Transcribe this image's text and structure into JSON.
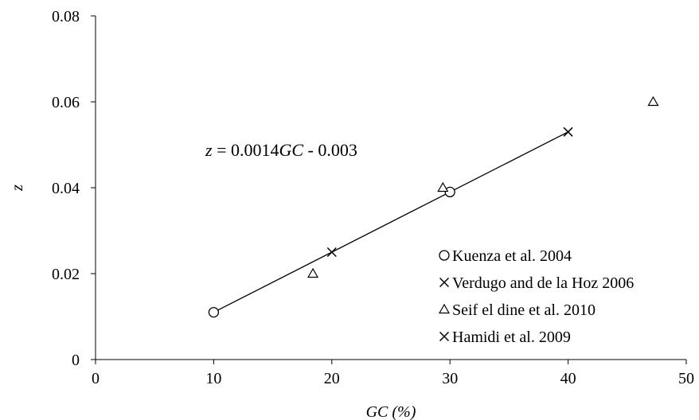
{
  "chart_data": {
    "type": "scatter",
    "xlabel": "GC (%)",
    "ylabel": "z",
    "xlim": [
      0,
      50
    ],
    "ylim": [
      0,
      0.08
    ],
    "xticks": [
      "0",
      "10",
      "20",
      "30",
      "40",
      "50"
    ],
    "yticks": [
      "0",
      "0.02",
      "0.04",
      "0.06",
      "0.08"
    ],
    "grid": false,
    "legend_position": "bottom-right",
    "series": [
      {
        "name": "Kuenza et al. 2004",
        "marker": "circle",
        "points": [
          [
            10,
            0.011
          ],
          [
            30,
            0.039
          ]
        ]
      },
      {
        "name": "Verdugo and de la Hoz 2006",
        "marker": "x",
        "points": [
          [
            20,
            0.025
          ],
          [
            40,
            0.053
          ]
        ]
      },
      {
        "name": "Seif el dine et al. 2010",
        "marker": "triangle",
        "points": [
          [
            18.4,
            0.02
          ],
          [
            29.4,
            0.04
          ],
          [
            47.2,
            0.06
          ]
        ]
      },
      {
        "name": "Hamidi et al. 2009",
        "marker": "x",
        "points": []
      }
    ],
    "trendline": {
      "x_range": [
        10,
        40
      ],
      "slope": 0.0014,
      "intercept": -0.003,
      "equation_parts": [
        "z",
        " = 0.0014",
        "GC",
        " - 0.003"
      ]
    }
  }
}
